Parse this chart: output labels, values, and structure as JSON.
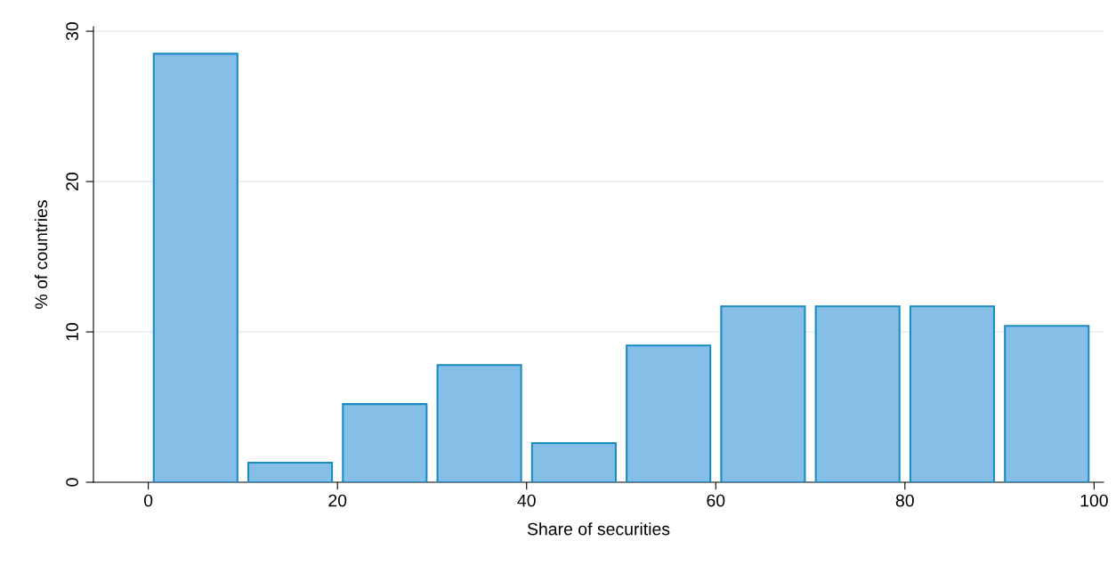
{
  "chart_data": {
    "type": "histogram",
    "xlabel": "Share of securities",
    "ylabel": "% of countries",
    "bins": [
      0,
      10,
      20,
      30,
      40,
      50,
      60,
      70,
      80,
      90,
      100
    ],
    "values": [
      28.5,
      1.3,
      5.2,
      7.8,
      2.6,
      9.1,
      11.7,
      11.7,
      11.7,
      10.4
    ],
    "color": "#85bfe8",
    "xlim": [
      -5.8,
      101
    ],
    "xticks": [
      0,
      20,
      40,
      60,
      80,
      100
    ],
    "ylim": [
      0,
      30.3
    ],
    "yticks": [
      0,
      10,
      20,
      30
    ],
    "grid": "y",
    "legend": false
  }
}
